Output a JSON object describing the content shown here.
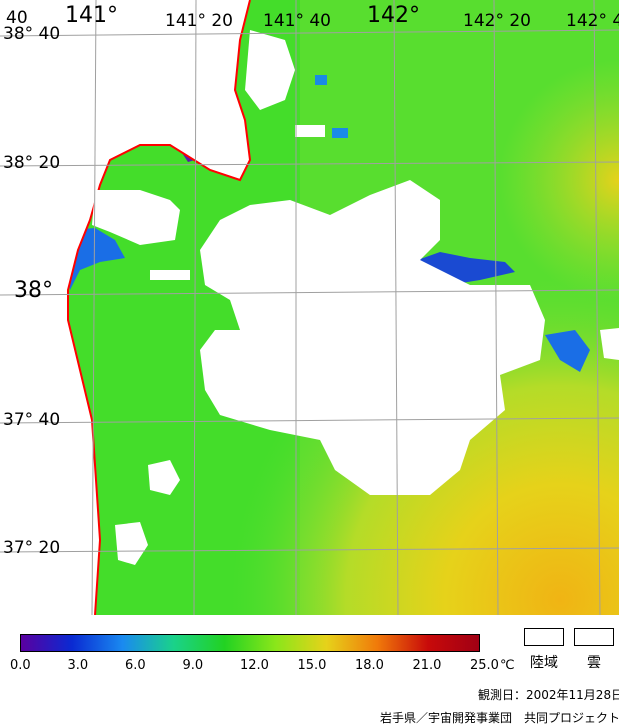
{
  "map": {
    "lat_labels": [
      {
        "id": "lat-38-40",
        "text": "38° 40"
      },
      {
        "id": "lat-38-20",
        "text": "38° 20"
      },
      {
        "id": "lat-38",
        "text": "38°"
      },
      {
        "id": "lat-37-40",
        "text": "37° 40"
      },
      {
        "id": "lat-37-20",
        "text": "37° 20"
      }
    ],
    "lon_labels": [
      {
        "id": "lon-140-40",
        "text": "40"
      },
      {
        "id": "lon-141",
        "text": "141°"
      },
      {
        "id": "lon-141-20",
        "text": "141° 20"
      },
      {
        "id": "lon-141-40",
        "text": "141° 40"
      },
      {
        "id": "lon-142",
        "text": "142°"
      },
      {
        "id": "lon-142-20",
        "text": "142° 20"
      },
      {
        "id": "lon-142-40",
        "text": "142° 4"
      }
    ],
    "colors": {
      "land": "#ffffff",
      "coastline": "#ff0000",
      "grid": "#a0a0a0",
      "sst_green": "#33dd22",
      "sst_lightgreen": "#66e633",
      "sst_yellow": "#e6d21a",
      "sst_blue": "#1a5ad2",
      "sst_purple": "#5a1aaa"
    }
  },
  "colorbar": {
    "ticks": [
      "0.0",
      "3.0",
      "6.0",
      "9.0",
      "12.0",
      "15.0",
      "18.0",
      "21.0",
      "25.0"
    ],
    "unit": "℃",
    "stops": [
      "#5a00a0",
      "#0a2ad2",
      "#1a8af0",
      "#1ad28a",
      "#22d222",
      "#8ae61a",
      "#e6d21a",
      "#f07a0a",
      "#c80a0a",
      "#a00014"
    ]
  },
  "legend": {
    "land_label": "陸域",
    "cloud_label": "雲"
  },
  "footer": {
    "observation_date": "観測日：2002年11月28日",
    "credit": "岩手県／宇宙開発事業団　共同プロジェクト"
  }
}
